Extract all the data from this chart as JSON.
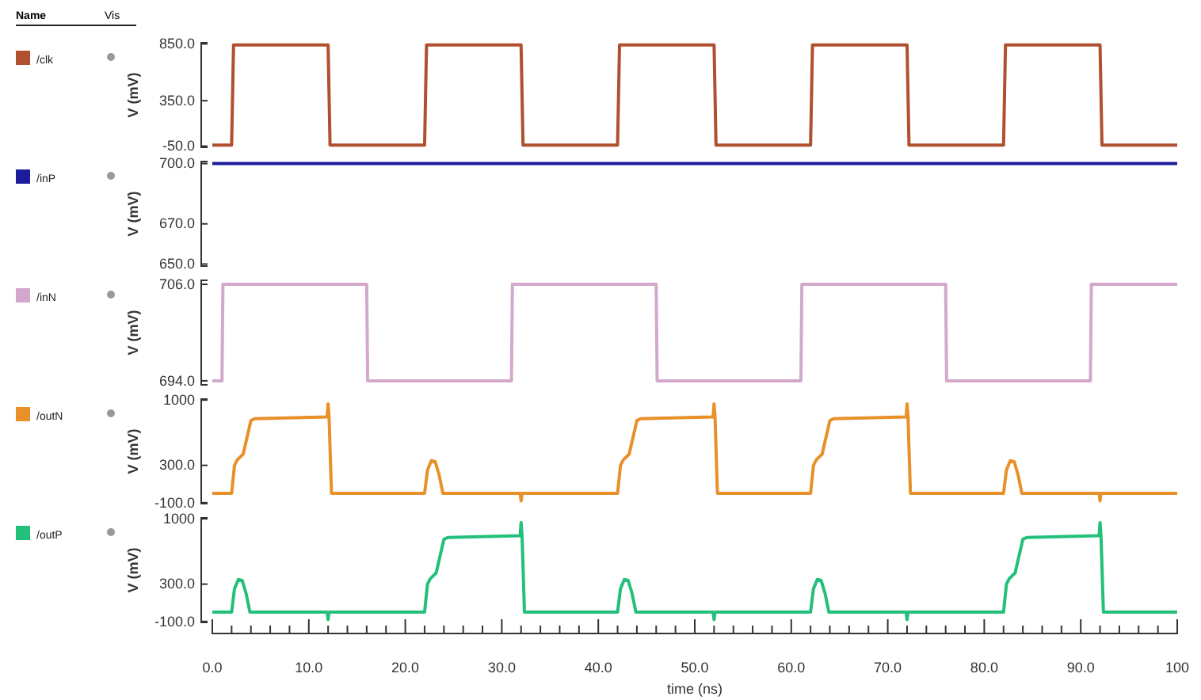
{
  "chart_data": [
    {
      "type": "line",
      "legend_title": "Name",
      "annotations": [
        "Vis"
      ],
      "ylabel": "V (mV)",
      "legend": "left",
      "tick_labels": "y",
      "xlim": [
        0,
        100
      ],
      "ylim": [
        -60,
        860
      ],
      "yticks": [
        {
          "value": 850,
          "label": "850.0"
        },
        {
          "value": 350,
          "label": "350.0"
        },
        {
          "value": -50,
          "label": "-50.0"
        }
      ],
      "series": [
        {
          "name": "/clk",
          "color": "#b0502e",
          "x": [
            0,
            2,
            2.2,
            12,
            12.2,
            22,
            22.2,
            32,
            32.2,
            42,
            42.2,
            52,
            52.2,
            62,
            62.2,
            72,
            72.2,
            82,
            82.2,
            92,
            92.2,
            100
          ],
          "values": [
            -40,
            -40,
            840,
            840,
            -40,
            -40,
            840,
            840,
            -40,
            -40,
            840,
            840,
            -40,
            -40,
            840,
            840,
            -40,
            -40,
            840,
            840,
            -40,
            -40
          ]
        }
      ]
    },
    {
      "type": "line",
      "ylabel": "V (mV)",
      "legend": "left",
      "tick_labels": "y",
      "xlim": [
        0,
        100
      ],
      "ylim": [
        649,
        701
      ],
      "yticks": [
        {
          "value": 700,
          "label": "700.0"
        },
        {
          "value": 670,
          "label": "670.0"
        },
        {
          "value": 650,
          "label": "650.0"
        }
      ],
      "series": [
        {
          "name": "/inP",
          "color": "#1c1c9c",
          "x": [
            0,
            100
          ],
          "values": [
            700,
            700
          ]
        }
      ]
    },
    {
      "type": "line",
      "ylabel": "V (mV)",
      "legend": "left",
      "tick_labels": "y",
      "xlim": [
        0,
        100
      ],
      "ylim": [
        693.5,
        706.5
      ],
      "yticks": [
        {
          "value": 706,
          "label": "706.0"
        },
        {
          "value": 694,
          "label": "694.0"
        }
      ],
      "series": [
        {
          "name": "/inN",
          "color": "#d4a8cc",
          "x": [
            0,
            1,
            1.1,
            16,
            16.1,
            31,
            31.1,
            46,
            46.1,
            61,
            61.1,
            76,
            76.1,
            91,
            91.1,
            100
          ],
          "values": [
            694,
            694,
            706,
            706,
            694,
            694,
            706,
            706,
            694,
            694,
            706,
            706,
            694,
            694,
            706,
            706
          ]
        }
      ]
    },
    {
      "type": "line",
      "ylabel": "V (mV)",
      "legend": "left",
      "tick_labels": "y",
      "xlim": [
        0,
        100
      ],
      "ylim": [
        -110,
        1010
      ],
      "yticks": [
        1000,
        {
          "value": 300,
          "label": "300.0"
        },
        {
          "value": -100,
          "label": "-100.0"
        }
      ],
      "series": [
        {
          "name": "/outN",
          "color": "#e8902a",
          "x": [
            0,
            2,
            2.3,
            2.6,
            3.2,
            3.6,
            4.0,
            4.4,
            11.9,
            12,
            12.1,
            12.35,
            22,
            22.3,
            22.7,
            23.1,
            23.5,
            23.9,
            31.9,
            32,
            32.1,
            42,
            42.3,
            42.6,
            43.2,
            43.6,
            44.0,
            44.4,
            51.9,
            52,
            52.1,
            52.35,
            62,
            62.3,
            62.6,
            63.2,
            63.6,
            64.0,
            64.4,
            71.9,
            72,
            72.1,
            72.35,
            82,
            82.3,
            82.7,
            83.1,
            83.5,
            83.9,
            91.9,
            92,
            92.1,
            100
          ],
          "values": [
            0,
            0,
            300,
            360,
            420,
            600,
            780,
            800,
            820,
            960,
            820,
            0,
            0,
            250,
            350,
            340,
            200,
            0,
            0,
            -80,
            0,
            0,
            300,
            360,
            420,
            600,
            780,
            800,
            820,
            960,
            820,
            0,
            0,
            300,
            360,
            420,
            600,
            780,
            800,
            820,
            960,
            820,
            0,
            0,
            250,
            350,
            340,
            200,
            0,
            0,
            -80,
            0,
            0
          ]
        }
      ]
    },
    {
      "type": "line",
      "ylabel": "V (mV)",
      "xlabel": "time (ns)",
      "legend": "left",
      "xlim": [
        0,
        100
      ],
      "xticks": [
        {
          "value": 0,
          "label": "0.0"
        },
        {
          "value": 2,
          "label": null
        },
        {
          "value": 4,
          "label": null
        },
        {
          "value": 6,
          "label": null
        },
        {
          "value": 8,
          "label": null
        },
        {
          "value": 10,
          "label": "10.0"
        },
        {
          "value": 12,
          "label": null
        },
        {
          "value": 14,
          "label": null
        },
        {
          "value": 16,
          "label": null
        },
        {
          "value": 18,
          "label": null
        },
        {
          "value": 20,
          "label": "20.0"
        },
        {
          "value": 22,
          "label": null
        },
        {
          "value": 24,
          "label": null
        },
        {
          "value": 26,
          "label": null
        },
        {
          "value": 28,
          "label": null
        },
        {
          "value": 30,
          "label": "30.0"
        },
        {
          "value": 32,
          "label": null
        },
        {
          "value": 34,
          "label": null
        },
        {
          "value": 36,
          "label": null
        },
        {
          "value": 38,
          "label": null
        },
        {
          "value": 40,
          "label": "40.0"
        },
        {
          "value": 42,
          "label": null
        },
        {
          "value": 44,
          "label": null
        },
        {
          "value": 46,
          "label": null
        },
        {
          "value": 48,
          "label": null
        },
        {
          "value": 50,
          "label": "50.0"
        },
        {
          "value": 52,
          "label": null
        },
        {
          "value": 54,
          "label": null
        },
        {
          "value": 56,
          "label": null
        },
        {
          "value": 58,
          "label": null
        },
        {
          "value": 60,
          "label": "60.0"
        },
        {
          "value": 62,
          "label": null
        },
        {
          "value": 64,
          "label": null
        },
        {
          "value": 66,
          "label": null
        },
        {
          "value": 68,
          "label": null
        },
        {
          "value": 70,
          "label": "70.0"
        },
        {
          "value": 72,
          "label": null
        },
        {
          "value": 74,
          "label": null
        },
        {
          "value": 76,
          "label": null
        },
        {
          "value": 78,
          "label": null
        },
        {
          "value": 80,
          "label": "80.0"
        },
        {
          "value": 82,
          "label": null
        },
        {
          "value": 84,
          "label": null
        },
        {
          "value": 86,
          "label": null
        },
        {
          "value": 88,
          "label": null
        },
        {
          "value": 90,
          "label": "90.0"
        },
        {
          "value": 92,
          "label": null
        },
        {
          "value": 94,
          "label": null
        },
        {
          "value": 96,
          "label": null
        },
        {
          "value": 98,
          "label": null
        },
        {
          "value": 100,
          "label": "100"
        }
      ],
      "ylim": [
        -110,
        1010
      ],
      "yticks": [
        1000,
        {
          "value": 300,
          "label": "300.0"
        },
        {
          "value": -100,
          "label": "-100.0"
        }
      ],
      "series": [
        {
          "name": "/outP",
          "color": "#22c07a",
          "x": [
            0,
            2,
            2.3,
            2.7,
            3.1,
            3.5,
            3.9,
            11.9,
            12,
            12.1,
            22,
            22.3,
            22.6,
            23.2,
            23.6,
            24.0,
            24.4,
            31.9,
            32,
            32.1,
            32.35,
            42,
            42.3,
            42.7,
            43.1,
            43.5,
            43.9,
            51.9,
            52,
            52.1,
            62,
            62.3,
            62.7,
            63.1,
            63.5,
            63.9,
            71.9,
            72,
            72.1,
            82,
            82.3,
            82.6,
            83.2,
            83.6,
            84.0,
            84.4,
            91.9,
            92,
            92.1,
            92.35,
            100
          ],
          "values": [
            0,
            0,
            250,
            350,
            340,
            200,
            0,
            0,
            -80,
            0,
            0,
            300,
            360,
            420,
            600,
            780,
            800,
            820,
            960,
            820,
            0,
            0,
            250,
            350,
            340,
            200,
            0,
            0,
            -80,
            0,
            0,
            250,
            350,
            340,
            200,
            0,
            0,
            -80,
            0,
            0,
            300,
            360,
            420,
            600,
            780,
            800,
            820,
            960,
            820,
            0,
            0
          ]
        }
      ]
    }
  ]
}
